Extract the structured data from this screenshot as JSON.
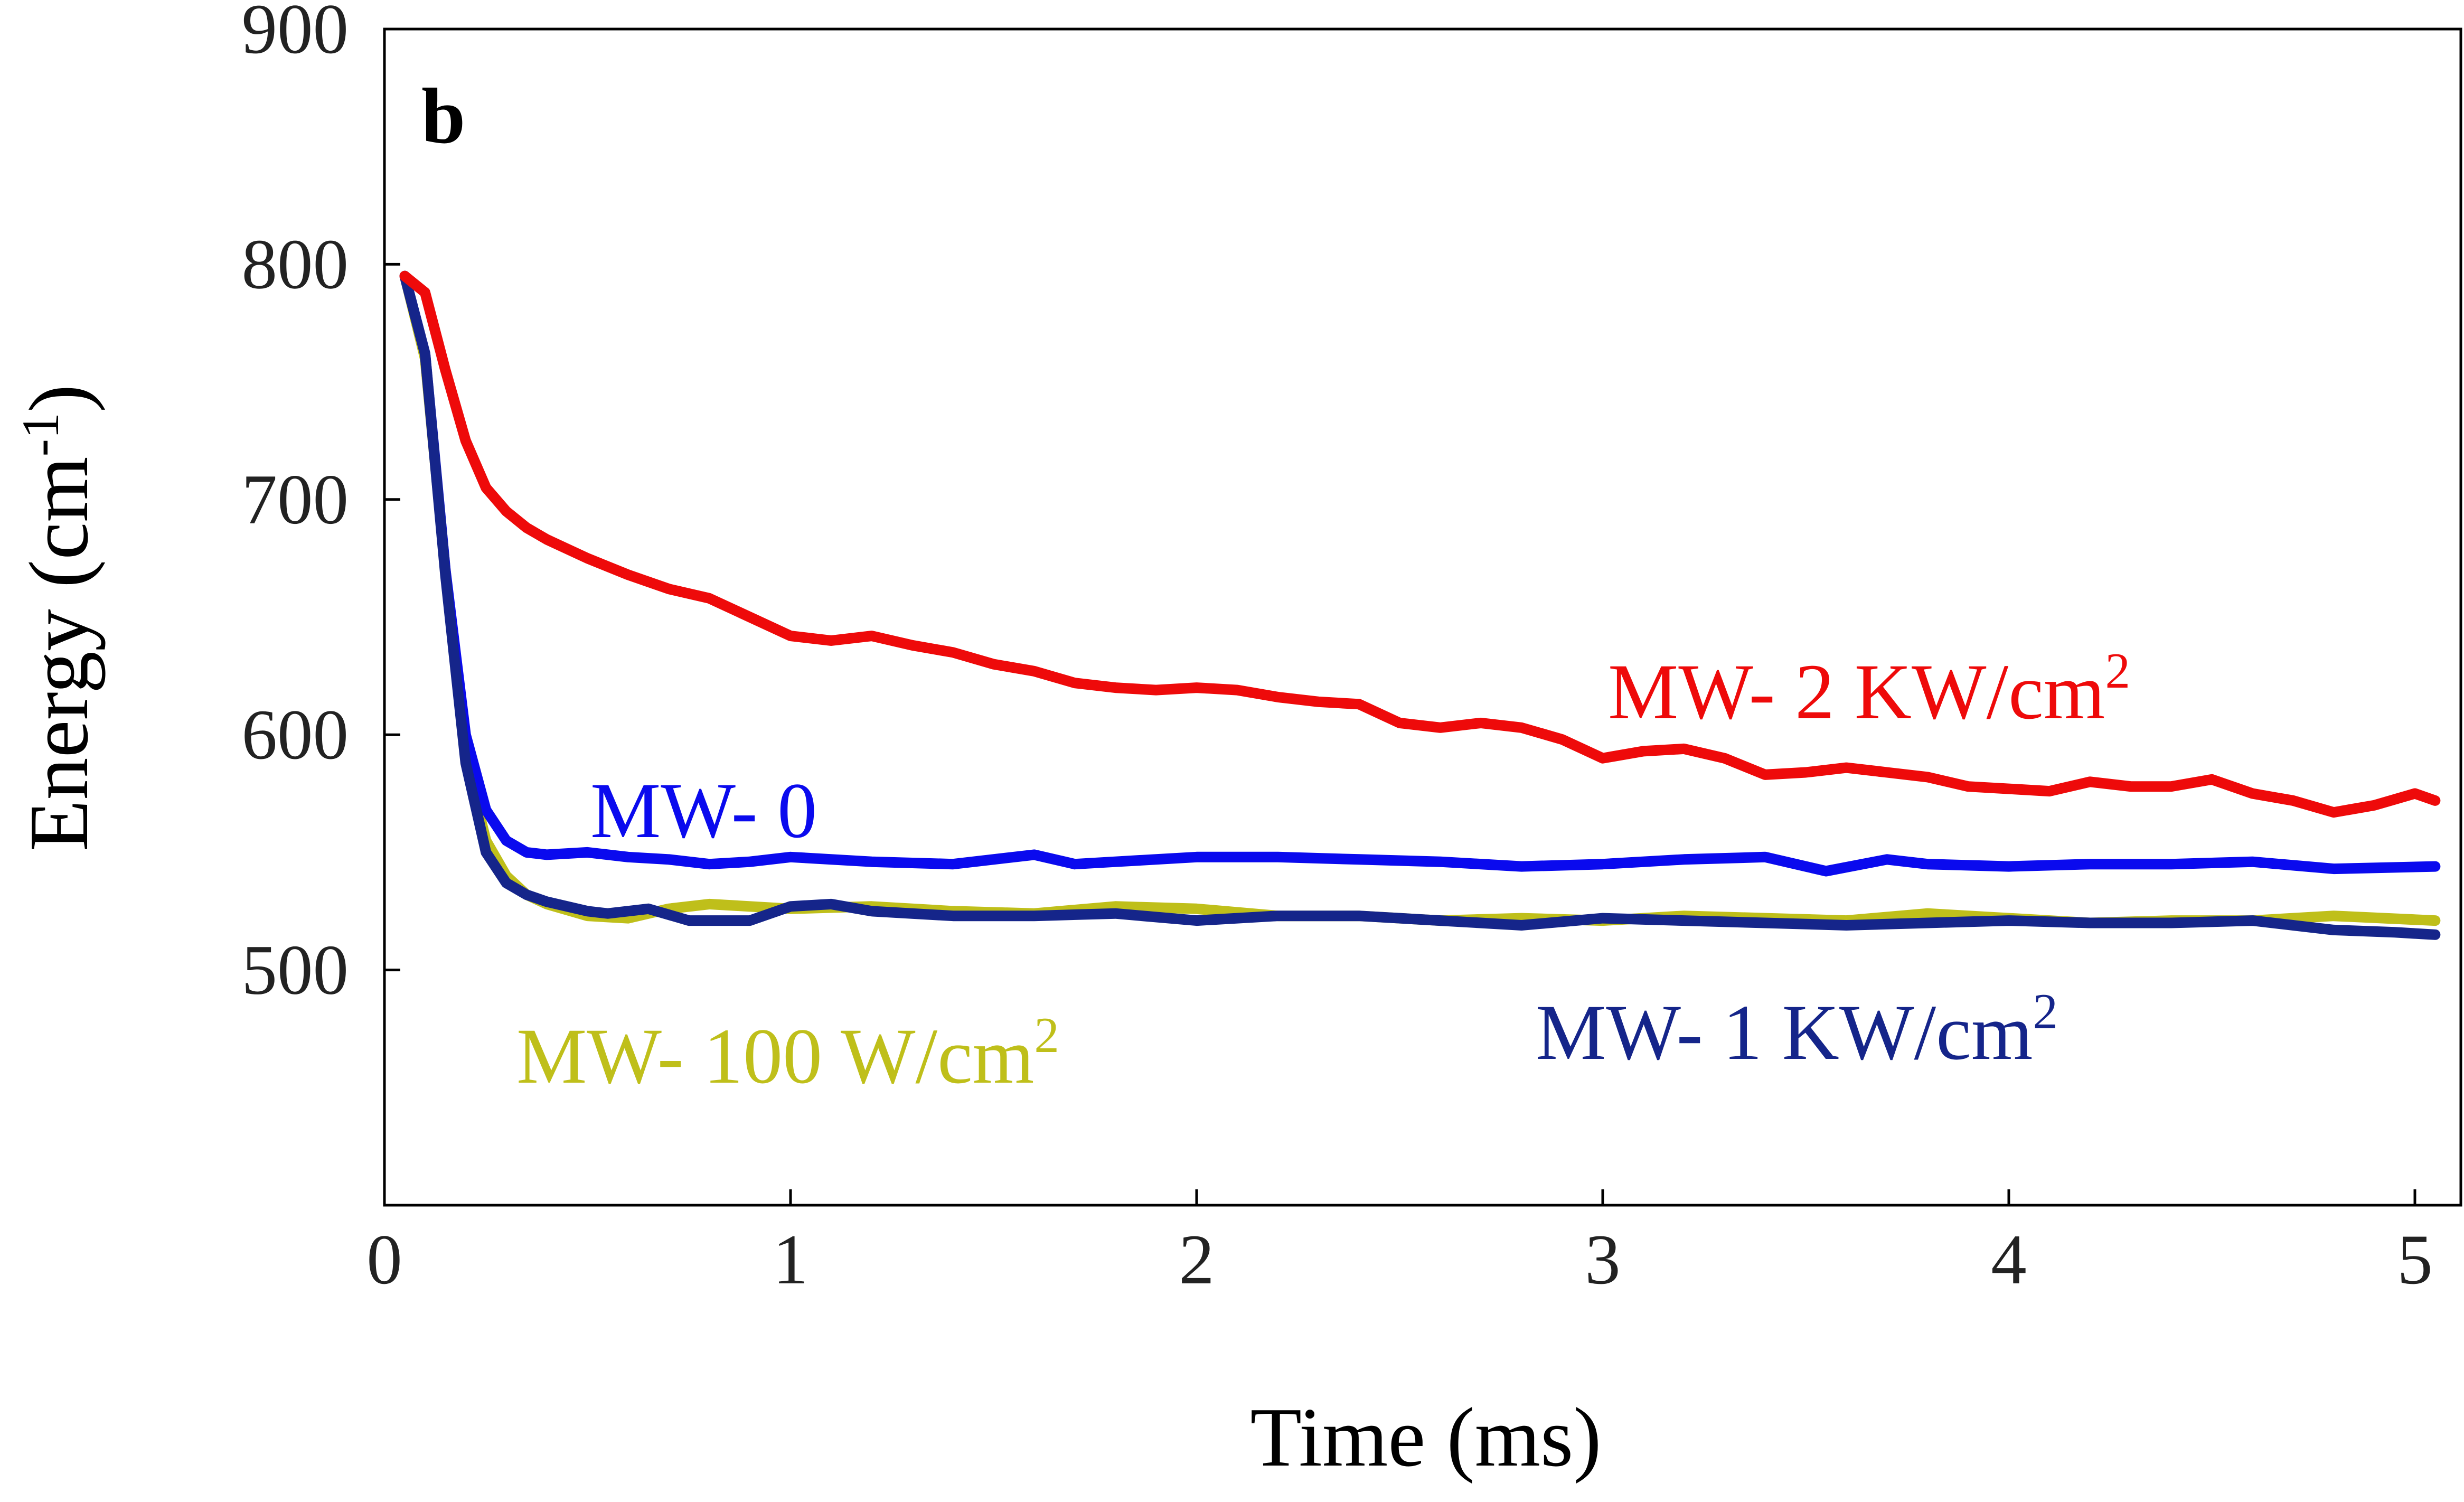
{
  "chart_data": {
    "type": "line",
    "panel_label": "b",
    "xlabel": "Time (ms)",
    "ylabel": "Energy (cm",
    "ylabel_superscript": "-1",
    "ylabel_suffix": ")",
    "xlim": [
      0,
      5.1
    ],
    "ylim": [
      400,
      900
    ],
    "xticks": [
      0,
      1,
      2,
      3,
      4,
      5
    ],
    "yticks": [
      500,
      600,
      700,
      800,
      900
    ],
    "xtick_labels": [
      "0",
      "1",
      "2",
      "3",
      "4",
      "5"
    ],
    "ytick_labels": [
      "500",
      "600",
      "700",
      "800",
      "900"
    ],
    "series": [
      {
        "name": "MW- 100 W/cm2",
        "label": "MW- 100 W/cm",
        "label_sup": "2",
        "color": "#bfbf1a",
        "x": [
          0.05,
          0.1,
          0.15,
          0.2,
          0.25,
          0.3,
          0.35,
          0.4,
          0.5,
          0.6,
          0.7,
          0.8,
          1.0,
          1.2,
          1.4,
          1.6,
          1.8,
          2.0,
          2.2,
          2.4,
          2.6,
          2.8,
          3.0,
          3.2,
          3.4,
          3.6,
          3.8,
          4.0,
          4.2,
          4.4,
          4.6,
          4.8,
          5.05
        ],
        "y": [
          795,
          760,
          670,
          590,
          555,
          540,
          532,
          528,
          523,
          522,
          526,
          528,
          526,
          527,
          525,
          524,
          527,
          526,
          523,
          523,
          521,
          522,
          521,
          523,
          522,
          521,
          524,
          522,
          520,
          521,
          521,
          523,
          521
        ]
      },
      {
        "name": "MW- 0",
        "label": "MW- 0",
        "label_sup": "",
        "color": "#0a0aee",
        "x": [
          0.05,
          0.1,
          0.15,
          0.2,
          0.25,
          0.3,
          0.35,
          0.4,
          0.5,
          0.6,
          0.7,
          0.8,
          0.9,
          1.0,
          1.2,
          1.4,
          1.6,
          1.7,
          1.8,
          2.0,
          2.2,
          2.4,
          2.6,
          2.8,
          3.0,
          3.2,
          3.4,
          3.55,
          3.7,
          3.8,
          4.0,
          4.2,
          4.4,
          4.6,
          4.8,
          5.05
        ],
        "y": [
          795,
          762,
          670,
          600,
          568,
          555,
          550,
          549,
          550,
          548,
          547,
          545,
          546,
          548,
          546,
          545,
          549,
          545,
          546,
          548,
          548,
          547,
          546,
          544,
          545,
          547,
          548,
          542,
          547,
          545,
          544,
          545,
          545,
          546,
          543,
          544
        ]
      },
      {
        "name": "MW- 1 KW/cm2",
        "label": "MW- 1 KW/cm",
        "label_sup": "2",
        "color": "#15258a",
        "x": [
          0.05,
          0.1,
          0.15,
          0.2,
          0.25,
          0.3,
          0.35,
          0.4,
          0.5,
          0.55,
          0.65,
          0.75,
          0.9,
          1.0,
          1.1,
          1.2,
          1.4,
          1.6,
          1.8,
          2.0,
          2.2,
          2.4,
          2.6,
          2.8,
          3.0,
          3.2,
          3.4,
          3.6,
          3.8,
          4.0,
          4.2,
          4.4,
          4.6,
          4.8,
          4.95,
          5.05
        ],
        "y": [
          795,
          762,
          668,
          588,
          550,
          537,
          532,
          529,
          525,
          524,
          526,
          521,
          521,
          527,
          528,
          525,
          523,
          523,
          524,
          521,
          523,
          523,
          521,
          519,
          522,
          521,
          520,
          519,
          520,
          521,
          520,
          520,
          521,
          517,
          516,
          515
        ]
      },
      {
        "name": "MW- 2 KW/cm2",
        "label": "MW- 2 KW/cm",
        "label_sup": "2",
        "color": "#ee0a0a",
        "x": [
          0.05,
          0.1,
          0.15,
          0.2,
          0.25,
          0.3,
          0.35,
          0.4,
          0.5,
          0.6,
          0.7,
          0.8,
          0.9,
          1.0,
          1.1,
          1.2,
          1.3,
          1.4,
          1.5,
          1.6,
          1.7,
          1.8,
          1.9,
          2.0,
          2.1,
          2.2,
          2.3,
          2.4,
          2.5,
          2.6,
          2.7,
          2.8,
          2.9,
          3.0,
          3.1,
          3.2,
          3.3,
          3.4,
          3.5,
          3.6,
          3.7,
          3.8,
          3.9,
          4.0,
          4.1,
          4.2,
          4.3,
          4.4,
          4.5,
          4.6,
          4.7,
          4.8,
          4.9,
          5.0,
          5.05
        ],
        "y": [
          795,
          788,
          755,
          725,
          705,
          695,
          688,
          683,
          675,
          668,
          662,
          658,
          650,
          642,
          640,
          642,
          638,
          635,
          630,
          627,
          622,
          620,
          619,
          620,
          619,
          616,
          614,
          613,
          605,
          603,
          605,
          603,
          598,
          590,
          593,
          594,
          590,
          583,
          584,
          586,
          584,
          582,
          578,
          577,
          576,
          580,
          578,
          578,
          581,
          575,
          572,
          567,
          570,
          575,
          572
        ]
      }
    ]
  }
}
